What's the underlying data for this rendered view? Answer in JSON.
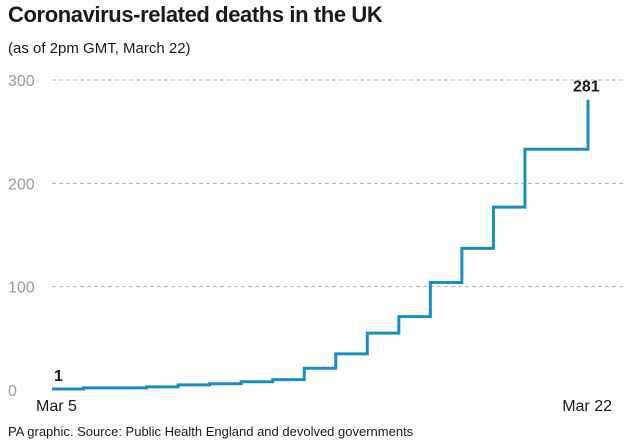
{
  "title": "Coronavirus-related deaths in the UK",
  "subtitle": "(as of 2pm GMT, March 22)",
  "source": "PA graphic. Source: Public Health England and devolved governments",
  "colors": {
    "line": "#1c8dc1",
    "grid": "#b3b3b3",
    "text": "#1a1a1a",
    "tick": "#9a9a9a"
  },
  "chart_data": {
    "type": "line",
    "style": "step",
    "title": "Coronavirus-related deaths in the UK",
    "subtitle": "(as of 2pm GMT, March 22)",
    "xlabel": "",
    "ylabel": "",
    "ylim": [
      0,
      300
    ],
    "yticks": [
      0,
      100,
      200,
      300
    ],
    "grid": "horizontal-dashed",
    "legend": "none",
    "x_tick_labels": [
      "Mar 5",
      "Mar 22"
    ],
    "x": [
      "Mar 5",
      "Mar 6",
      "Mar 7",
      "Mar 8",
      "Mar 9",
      "Mar 10",
      "Mar 11",
      "Mar 12",
      "Mar 13",
      "Mar 14",
      "Mar 15",
      "Mar 16",
      "Mar 17",
      "Mar 18",
      "Mar 19",
      "Mar 20",
      "Mar 21",
      "Mar 22"
    ],
    "series": [
      {
        "values": [
          1,
          2,
          2,
          3,
          5,
          6,
          8,
          10,
          21,
          35,
          55,
          71,
          104,
          137,
          177,
          233,
          233,
          281
        ]
      }
    ],
    "data_labels": [
      {
        "x": "Mar 5",
        "value": "1"
      },
      {
        "x": "Mar 22",
        "value": "281"
      }
    ]
  }
}
